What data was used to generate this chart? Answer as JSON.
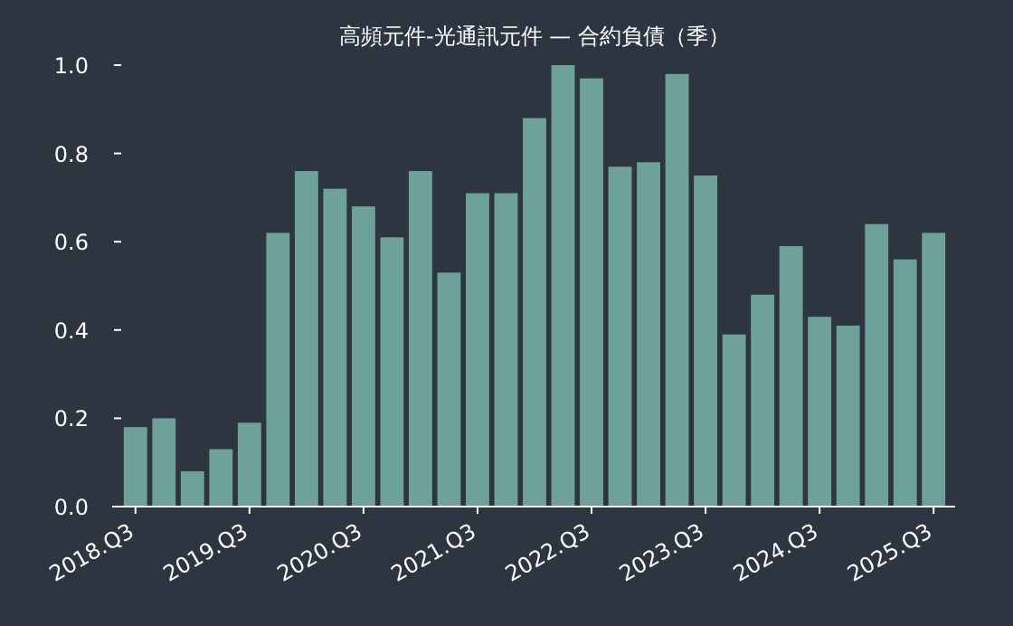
{
  "chart_data": {
    "type": "bar",
    "title": "高頻元件-光通訊元件 — 合約負債（季）",
    "categories": [
      "2018.Q3",
      null,
      null,
      null,
      "2019.Q3",
      null,
      null,
      null,
      "2020.Q3",
      null,
      null,
      null,
      "2021.Q3",
      null,
      null,
      null,
      "2022.Q3",
      null,
      null,
      null,
      "2023.Q3",
      null,
      null,
      null,
      "2024.Q3",
      null,
      null,
      null,
      "2025.Q3"
    ],
    "values": [
      0.18,
      0.2,
      0.08,
      0.13,
      0.19,
      0.62,
      0.76,
      0.72,
      0.68,
      0.61,
      0.76,
      0.53,
      0.71,
      0.71,
      0.88,
      1.0,
      0.97,
      0.77,
      0.78,
      0.98,
      0.75,
      0.39,
      0.48,
      0.59,
      0.43,
      0.41,
      0.64,
      0.56,
      0.62
    ],
    "color": "#6fa19b",
    "ylim": [
      0,
      1.0
    ],
    "yticks": [
      {
        "value": 0,
        "label": "0.0"
      },
      {
        "value": 0.2,
        "label": "0.2"
      },
      {
        "value": 0.4,
        "label": "0.4"
      },
      {
        "value": 0.6,
        "label": "0.6"
      },
      {
        "value": 0.8,
        "label": "0.8"
      },
      {
        "value": 1.0,
        "label": "1.0"
      }
    ]
  }
}
